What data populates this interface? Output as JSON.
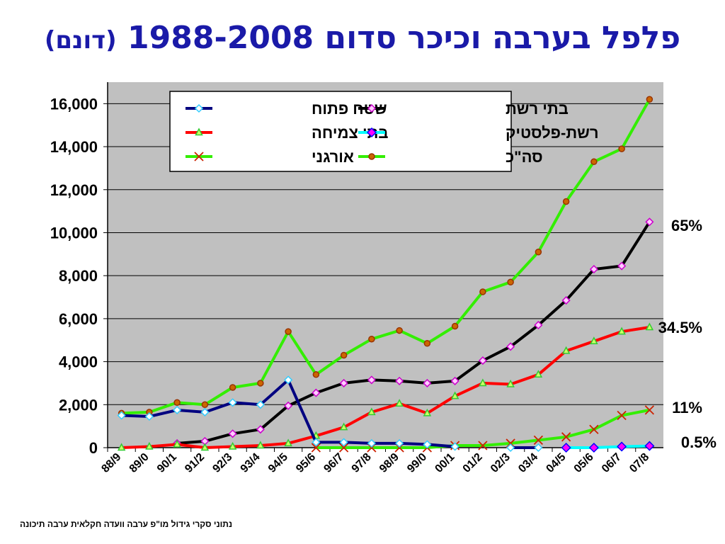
{
  "title": {
    "main": "פלפל בערבה וכיכר סדום 1988-2008",
    "unit": "(דונם)"
  },
  "footer": {
    "source": "נתוני סקרי גידול מו\"פ ערבה וועדה חקלאית ערבה תיכונה"
  },
  "chart_data": {
    "type": "line",
    "title": "פלפל בערבה וכיכר סדום 1988-2008 (דונם)",
    "categories": [
      "88/9",
      "89/0",
      "90/1",
      "91/2",
      "92/3",
      "93/4",
      "94/5",
      "95/6",
      "96/7",
      "97/8",
      "98/9",
      "99/0",
      "00/1",
      "01/2",
      "02/3",
      "03/4",
      "04/5",
      "05/6",
      "06/7",
      "07/8"
    ],
    "ylim": [
      0,
      17000
    ],
    "yticks": [
      0,
      2000,
      4000,
      6000,
      8000,
      10000,
      12000,
      14000,
      16000
    ],
    "ytick_labels": [
      "0",
      "2,000",
      "4,000",
      "6,000",
      "8,000",
      "10,000",
      "12,000",
      "14,000",
      "16,000"
    ],
    "grid": true,
    "legend_position": "top",
    "series": [
      {
        "name": "שטח פתוח",
        "color": "#000080",
        "marker": "diamond",
        "marker_fill": "#ffffff",
        "marker_stroke": "#33ccff",
        "values": [
          1500,
          1450,
          1750,
          1650,
          2100,
          2000,
          3150,
          250,
          250,
          200,
          200,
          150,
          50,
          null,
          0,
          0,
          null,
          null,
          null,
          null
        ]
      },
      {
        "name": "בתי רשת",
        "color": "#000000",
        "marker": "diamond",
        "marker_fill": "#ffccff",
        "marker_stroke": "#cc00cc",
        "values": [
          null,
          null,
          200,
          300,
          650,
          850,
          1950,
          2550,
          3000,
          3150,
          3100,
          3000,
          3100,
          4050,
          4700,
          5700,
          6850,
          8300,
          8450,
          10500
        ]
      },
      {
        "name": "בתי צמיחה",
        "color": "#ff0000",
        "marker": "triangle",
        "marker_fill": "#ccff66",
        "marker_stroke": "#33cc33",
        "values": [
          0,
          50,
          150,
          0,
          50,
          100,
          200,
          550,
          950,
          1650,
          2050,
          1600,
          2400,
          3000,
          2950,
          3400,
          4500,
          4950,
          5400,
          5600
        ]
      },
      {
        "name": "רשת-פלסטיק",
        "color": "#00ffff",
        "marker": "diamond",
        "marker_fill": "#ff00ff",
        "marker_stroke": "#0000ff",
        "values": [
          null,
          null,
          null,
          null,
          null,
          null,
          null,
          null,
          null,
          null,
          null,
          null,
          null,
          null,
          null,
          null,
          0,
          0,
          50,
          80
        ]
      },
      {
        "name": "אורגני",
        "color": "#33ee00",
        "marker": "x",
        "marker_fill": "none",
        "marker_stroke": "#cc2200",
        "values": [
          null,
          null,
          null,
          null,
          null,
          null,
          null,
          0,
          0,
          0,
          0,
          0,
          100,
          100,
          200,
          350,
          500,
          850,
          1500,
          1750
        ]
      },
      {
        "name": "סה\"כ",
        "color": "#33ee00",
        "marker": "circle",
        "marker_fill": "#cc6600",
        "marker_stroke": "#993300",
        "values": [
          1600,
          1650,
          2100,
          2000,
          2800,
          3000,
          5400,
          3400,
          4300,
          5050,
          5450,
          4850,
          5650,
          7250,
          7700,
          9100,
          11450,
          13300,
          13900,
          16200
        ]
      }
    ],
    "annotations": [
      {
        "text": "65%",
        "anchor_value": 10500
      },
      {
        "text": "34.5%",
        "anchor_value": 5600
      },
      {
        "text": "11%",
        "anchor_value": 1750
      },
      {
        "text": "0.5%",
        "anchor_value": 80
      }
    ]
  }
}
